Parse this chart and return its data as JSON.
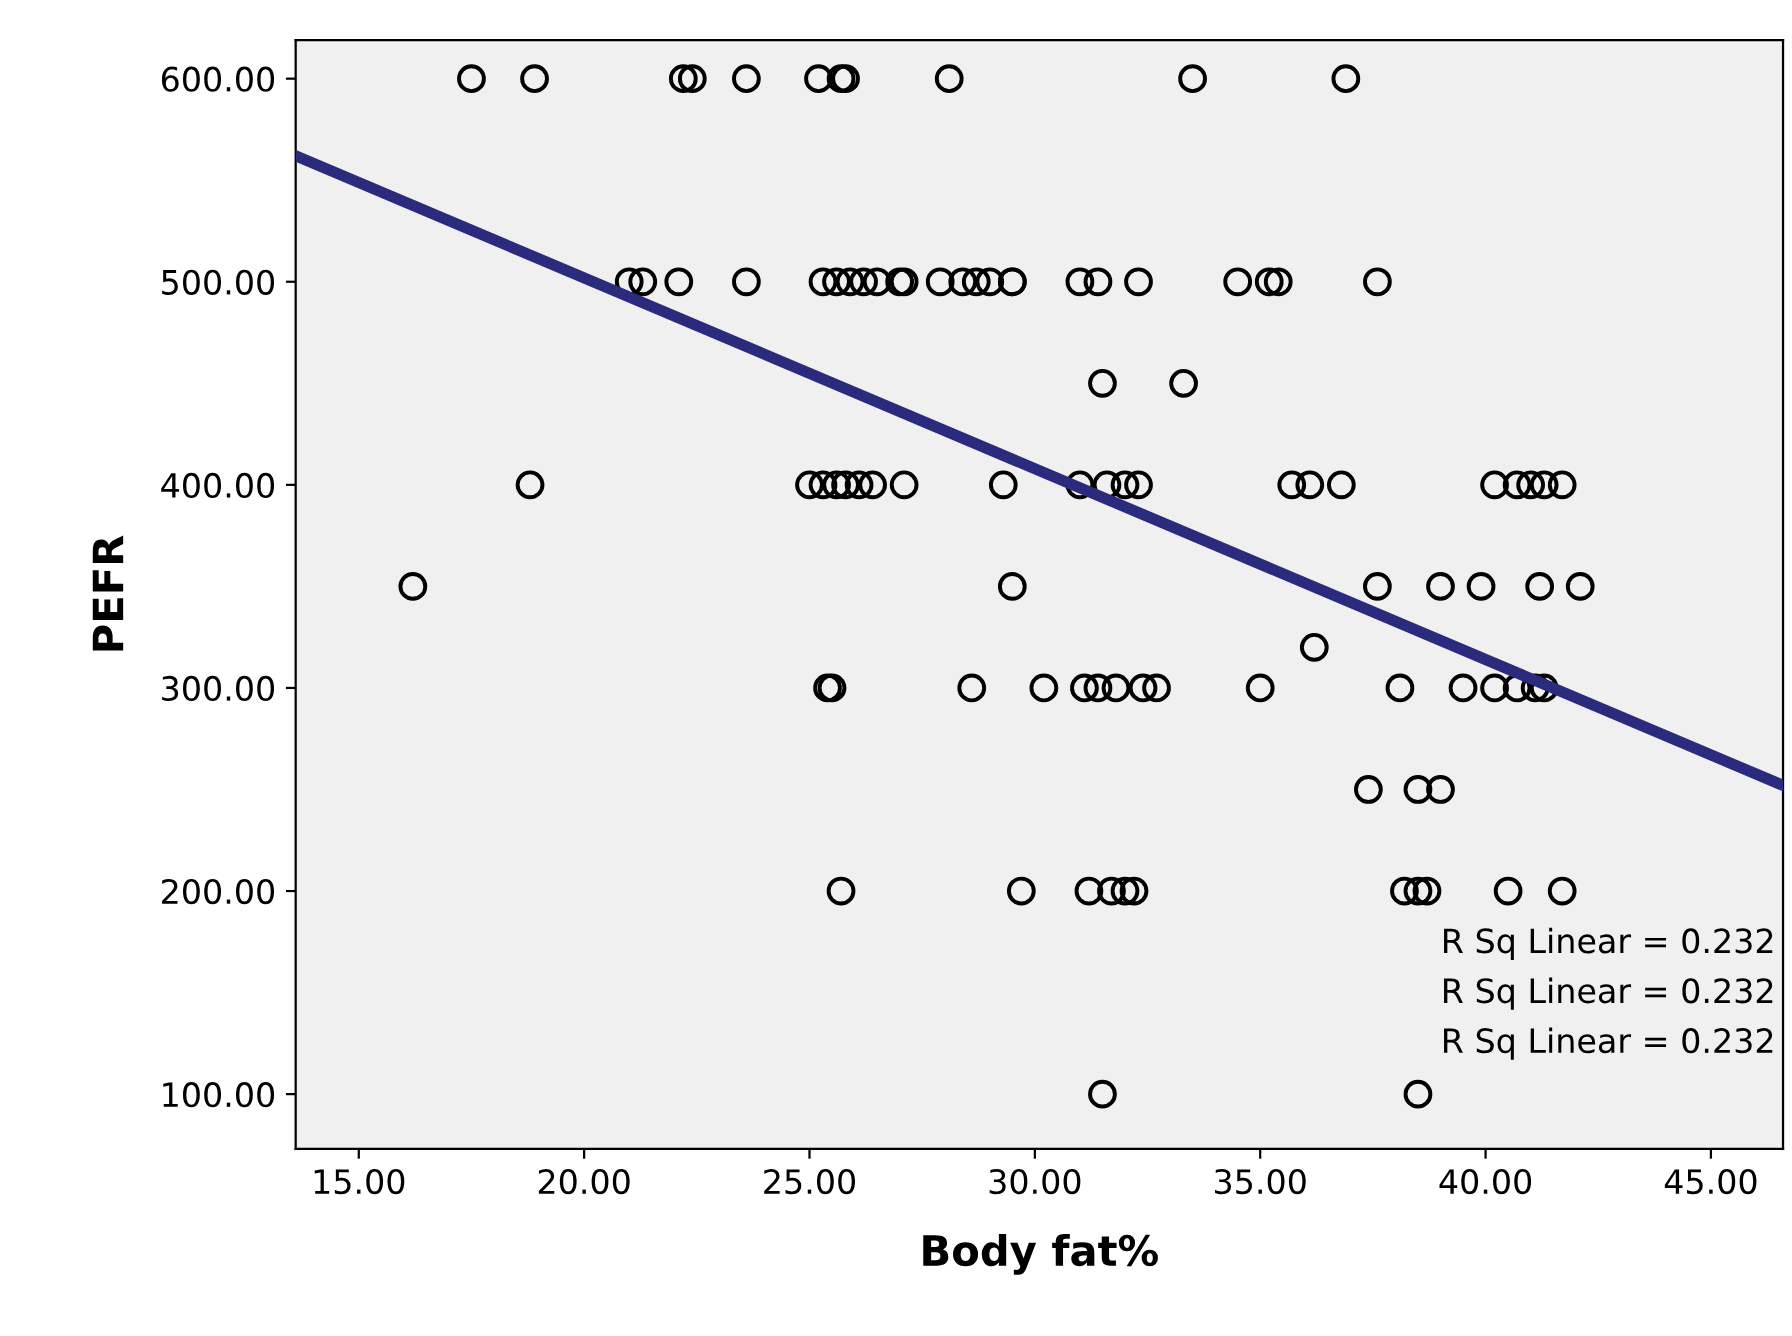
{
  "chart_data": {
    "type": "scatter",
    "xlabel": "Body fat%",
    "ylabel": "PEFR",
    "xlim": [
      13.6,
      46.6
    ],
    "ylim": [
      73,
      619
    ],
    "xticks": [
      {
        "value": 15,
        "label": "15.00"
      },
      {
        "value": 20,
        "label": "20.00"
      },
      {
        "value": 25,
        "label": "25.00"
      },
      {
        "value": 30,
        "label": "30.00"
      },
      {
        "value": 35,
        "label": "35.00"
      },
      {
        "value": 40,
        "label": "40.00"
      },
      {
        "value": 45,
        "label": "45.00"
      }
    ],
    "yticks": [
      {
        "value": 100,
        "label": "100.00"
      },
      {
        "value": 200,
        "label": "200.00"
      },
      {
        "value": 300,
        "label": "300.00"
      },
      {
        "value": 400,
        "label": "400.00"
      },
      {
        "value": 500,
        "label": "500.00"
      },
      {
        "value": 600,
        "label": "600.00"
      }
    ],
    "grid": false,
    "legend": false,
    "series": [
      {
        "color": "#000000",
        "marker": "circle",
        "x": [
          17.5,
          18.9,
          22.2,
          22.4,
          23.6,
          25.2,
          25.7,
          25.8,
          28.1,
          33.5,
          36.9,
          21.0,
          21.3,
          22.1,
          23.6,
          25.3,
          25.6,
          25.9,
          26.2,
          26.5,
          27.0,
          27.1,
          27.9,
          28.4,
          28.7,
          29.0,
          29.5,
          29.5,
          31.0,
          31.4,
          32.3,
          34.5,
          35.2,
          35.4,
          37.6,
          31.5,
          33.3,
          18.8,
          25.0,
          25.3,
          25.6,
          25.8,
          26.1,
          26.4,
          27.1,
          29.3,
          31.0,
          31.6,
          32.0,
          32.3,
          35.7,
          36.1,
          36.8,
          40.2,
          40.7,
          41.0,
          41.3,
          41.7,
          16.2,
          29.5,
          37.6,
          39.0,
          39.9,
          41.2,
          42.1,
          36.2,
          25.4,
          25.5,
          28.6,
          30.2,
          31.1,
          31.4,
          31.8,
          32.4,
          32.7,
          35.0,
          38.1,
          39.5,
          40.2,
          40.7,
          41.1,
          41.3,
          37.4,
          38.5,
          39.0,
          25.7,
          29.7,
          31.2,
          31.7,
          32.0,
          32.2,
          38.2,
          38.5,
          38.7,
          40.5,
          41.7,
          31.5,
          38.5
        ],
        "values": [
          600,
          600,
          600,
          600,
          600,
          600,
          600,
          600,
          600,
          600,
          600,
          500,
          500,
          500,
          500,
          500,
          500,
          500,
          500,
          500,
          500,
          500,
          500,
          500,
          500,
          500,
          500,
          500,
          500,
          500,
          500,
          500,
          500,
          500,
          500,
          450,
          450,
          400,
          400,
          400,
          400,
          400,
          400,
          400,
          400,
          400,
          400,
          400,
          400,
          400,
          400,
          400,
          400,
          400,
          400,
          400,
          400,
          400,
          350,
          350,
          350,
          350,
          350,
          350,
          350,
          320,
          300,
          300,
          300,
          300,
          300,
          300,
          300,
          300,
          300,
          300,
          300,
          300,
          300,
          300,
          300,
          300,
          250,
          250,
          250,
          200,
          200,
          200,
          200,
          200,
          200,
          200,
          200,
          200,
          200,
          200,
          100,
          100
        ]
      },
      {
        "type": "line",
        "color": "#2b2b7d",
        "marker": "none",
        "x": [
          13.6,
          46.6
        ],
        "values": [
          562,
          252
        ]
      }
    ],
    "annotations": [
      "R Sq Linear = 0.232",
      "R Sq Linear = 0.232",
      "R Sq Linear = 0.232"
    ]
  }
}
